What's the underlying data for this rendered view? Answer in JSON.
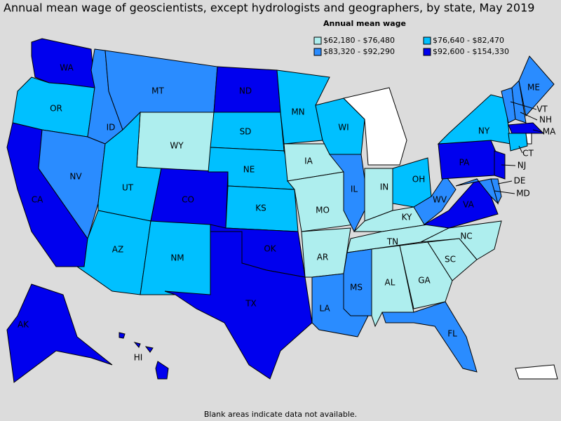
{
  "title": "Annual mean wage of geoscientists, except hydrologists and geographers, by state, May 2019",
  "legend": {
    "title": "Annual mean wage",
    "items": [
      {
        "label": "$62,180 - $76,480",
        "color": "#aeeeee",
        "states": [
          "WY",
          "IA",
          "MO",
          "AR",
          "IN",
          "KY",
          "TN",
          "AL",
          "GA",
          "SC",
          "NC"
        ]
      },
      {
        "label": "$76,640 - $82,470",
        "color": "#00c0ff",
        "states": [
          "OR",
          "UT",
          "AZ",
          "NM",
          "SD",
          "NE",
          "KS",
          "MN",
          "WI",
          "OH",
          "NY",
          "CT"
        ]
      },
      {
        "label": "$83,320 - $92,290",
        "color": "#2a8cff",
        "states": [
          "NV",
          "ID",
          "MT",
          "LA",
          "IL",
          "MS",
          "FL",
          "WV",
          "VT",
          "NH",
          "ME",
          "DE",
          "MD"
        ]
      },
      {
        "label": "$92,600 - $154,330",
        "color": "#0000ee",
        "states": [
          "WA",
          "CA",
          "CO",
          "ND",
          "OK",
          "TX",
          "VA",
          "PA",
          "MA",
          "NJ",
          "AK",
          "HI"
        ]
      }
    ]
  },
  "note": "Blank areas indicate data not available."
}
